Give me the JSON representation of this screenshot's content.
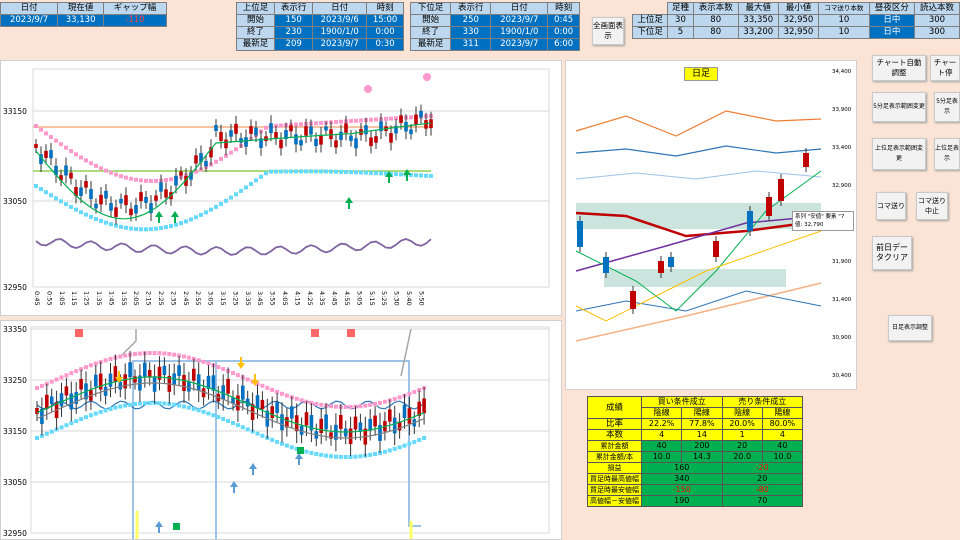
{
  "top_left": {
    "headers": [
      "日付",
      "現在値",
      "ギャップ幅"
    ],
    "values": [
      "2023/9/7",
      "33,130",
      "-110"
    ]
  },
  "upper": {
    "headers": [
      "上位足",
      "表示行",
      "日付",
      "時刻"
    ],
    "rows": [
      [
        "開始",
        "150",
        "2023/9/6",
        "15:00"
      ],
      [
        "終了",
        "230",
        "1900/1/0",
        "0:00"
      ],
      [
        "最新足",
        "209",
        "2023/9/7",
        "0:30"
      ]
    ]
  },
  "lower": {
    "headers": [
      "下位足",
      "表示行",
      "日付",
      "時刻"
    ],
    "rows": [
      [
        "開始",
        "250",
        "2023/9/7",
        "0:45"
      ],
      [
        "終了",
        "330",
        "1900/1/0",
        "0:00"
      ],
      [
        "最新足",
        "311",
        "2023/9/7",
        "6:00"
      ]
    ]
  },
  "fullscreen_button": "全画面表示",
  "right_table": {
    "headers": [
      "",
      "足種",
      "表示本数",
      "最大値",
      "最小値",
      "コマ送り本数",
      "昼夜区分",
      "読込本数"
    ],
    "rows": [
      [
        "上位足",
        "30",
        "80",
        "33,350",
        "32,950",
        "10",
        "日中",
        "300"
      ],
      [
        "下位足",
        "5",
        "80",
        "33,200",
        "32,950",
        "10",
        "日中",
        "300"
      ]
    ]
  },
  "buttons": {
    "auto_adjust": "チャート自動調整",
    "chart_stop": "チャート停",
    "five_min_range": "5分足表示範囲変更",
    "five_min_display": "5分足表示",
    "upper_range": "上位足表示範囲変更",
    "upper_display": "上位足表示",
    "koma": "コマ送り",
    "koma_stop": "コマ送り中止",
    "clear": "前日データクリア",
    "daily_adjust": "日足表示調整"
  },
  "upper_chart": {
    "y_ticks": [
      "33150",
      "33050",
      "32950"
    ],
    "x_ticks": [
      "0:45",
      "0:55",
      "1:05",
      "1:15",
      "1:25",
      "1:35",
      "1:45",
      "1:55",
      "2:05",
      "2:15",
      "2:25",
      "2:35",
      "2:45",
      "2:55",
      "3:05",
      "3:15",
      "3:25",
      "3:35",
      "3:45",
      "3:55",
      "4:05",
      "4:15",
      "4:25",
      "4:35",
      "4:45",
      "4:55",
      "5:05",
      "5:15",
      "5:25",
      "5:30",
      "5:40",
      "5:50"
    ]
  },
  "lower_chart": {
    "y_ticks": [
      "33350",
      "33250",
      "33150",
      "33050",
      "32950"
    ]
  },
  "daily_chart": {
    "title": "日足",
    "y_ticks": [
      "34,400",
      "33,900",
      "33,400",
      "32,900",
      "32,400",
      "31,900",
      "31,400",
      "30,900",
      "30,400"
    ],
    "tooltip_line1": "系列 \"安値\" 要素 \"7",
    "tooltip_line2": "値: 32,790"
  },
  "stats": {
    "title": "成績",
    "buy_header": "買い条件成立",
    "sell_header": "売り条件成立",
    "sub_headers": [
      "陰線",
      "陽線",
      "陰線",
      "陽線"
    ],
    "rows": [
      {
        "label": "比率",
        "values": [
          "22.2%",
          "77.8%",
          "20.0%",
          "80.0%"
        ],
        "merged": false
      },
      {
        "label": "本数",
        "values": [
          "4",
          "14",
          "1",
          "4"
        ],
        "merged": false
      },
      {
        "label": "累計金額",
        "values": [
          "40",
          "200",
          "20",
          "40"
        ],
        "merged": false
      },
      {
        "label": "累計金額/本",
        "values": [
          "10.0",
          "14.3",
          "20.0",
          "10.0"
        ],
        "merged": false
      },
      {
        "label": "損益",
        "values": [
          "160",
          "-20"
        ],
        "merged": true
      },
      {
        "label": "買足時最高値幅",
        "values": [
          "340",
          "20"
        ],
        "merged": true
      },
      {
        "label": "買足時最安値幅",
        "values": [
          "-150",
          "-80"
        ],
        "merged": true
      },
      {
        "label": "高値幅－安値幅",
        "values": [
          "190",
          "70"
        ],
        "merged": true
      }
    ]
  },
  "colors": {
    "header_blue": "#bdd7ee",
    "value_blue": "#0070c0",
    "accent_red": "#ff4040",
    "bg": "#fbe4d5",
    "stats_green": "#00b050",
    "stats_yellow": "#ffff00"
  }
}
